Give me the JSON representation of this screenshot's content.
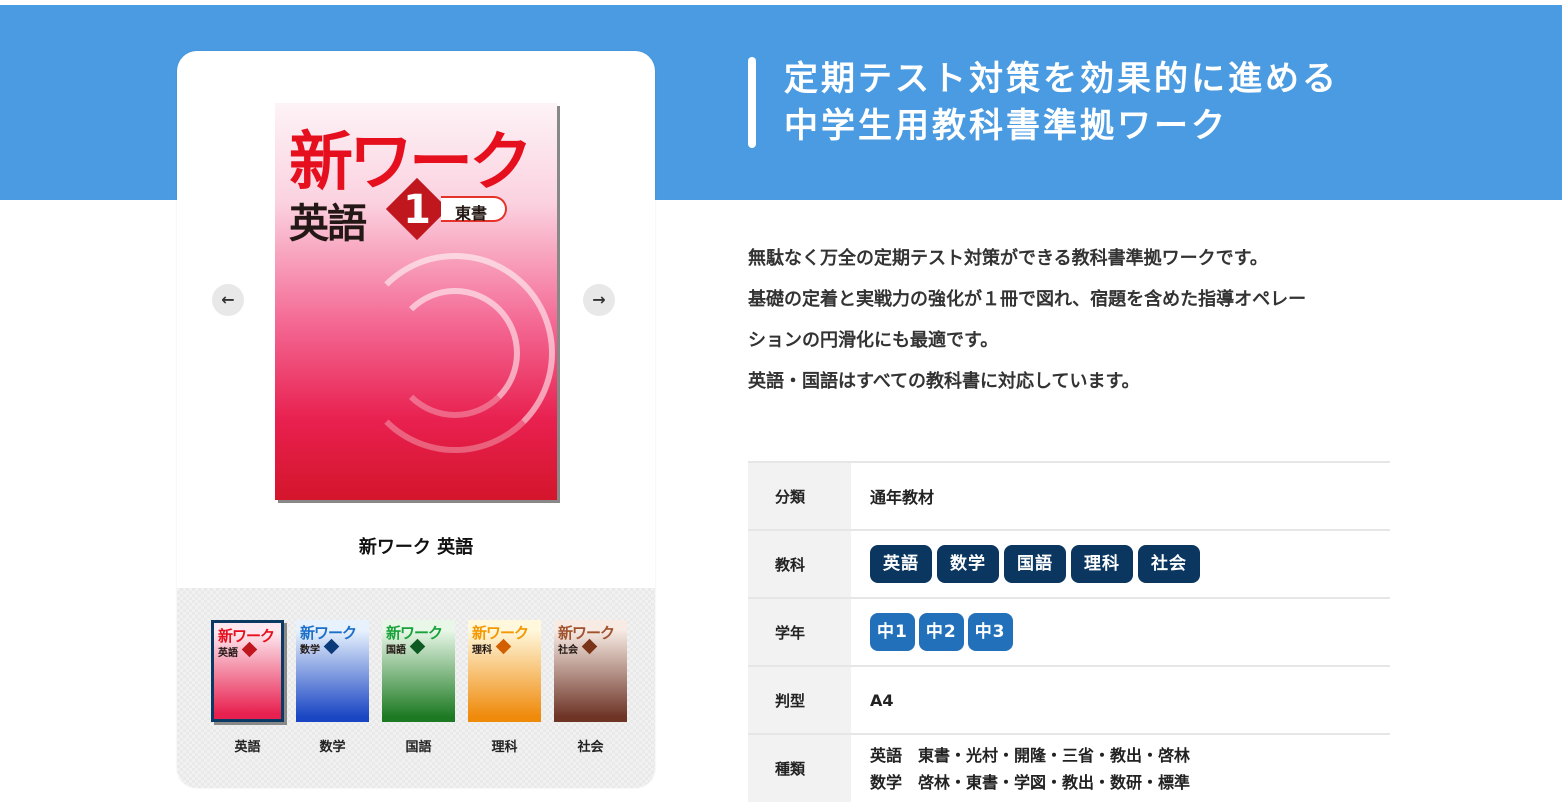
{
  "heading": {
    "line1": "定期テスト対策を効果的に進める",
    "line2": "中学生用教科書準拠ワーク"
  },
  "description": [
    "無駄なく万全の定期テスト対策ができる教科書準拠ワークです。",
    "基礎の定着と実戦力の強化が１冊で図れ、宿題を含めた指導オペレー",
    "ションの円滑化にも最適です。",
    "英語・国語はすべての教科書に対応しています。"
  ],
  "product": {
    "title": "新ワーク 英語",
    "cover": {
      "series": "新ワーク",
      "subject": "英語",
      "grade": "1",
      "publisher": "東書"
    },
    "prev_icon": "arrow-left-icon",
    "next_icon": "arrow-right-icon",
    "prev": "←",
    "next": "→"
  },
  "thumbnails": [
    {
      "label": "英語",
      "series": "新ワーク",
      "subject": "英語",
      "title_color": "#e60f1e",
      "c1": "#fde8ef",
      "c2": "#e8204f",
      "accent": "#c0171f",
      "selected": true
    },
    {
      "label": "数学",
      "series": "新ワーク",
      "subject": "数学",
      "title_color": "#1b6fc8",
      "c1": "#e8f2fd",
      "c2": "#1a46c4",
      "accent": "#0a3a7a",
      "selected": false
    },
    {
      "label": "国語",
      "series": "新ワーク",
      "subject": "国語",
      "title_color": "#17a33a",
      "c1": "#e9f7e8",
      "c2": "#1d7a22",
      "accent": "#0d5a22",
      "selected": false
    },
    {
      "label": "理科",
      "series": "新ワーク",
      "subject": "理科",
      "title_color": "#f39800",
      "c1": "#fff8dc",
      "c2": "#ef8a0b",
      "accent": "#d25f00",
      "selected": false
    },
    {
      "label": "社会",
      "series": "新ワーク",
      "subject": "社会",
      "title_color": "#a0522d",
      "c1": "#f7ebe4",
      "c2": "#6e3426",
      "accent": "#7a3417",
      "selected": false
    }
  ],
  "specs": {
    "category": {
      "label": "分類",
      "value": "通年教材"
    },
    "subjects": {
      "label": "教科",
      "tags": [
        "英語",
        "数学",
        "国語",
        "理科",
        "社会"
      ],
      "color": "#0b365f"
    },
    "grades": {
      "label": "学年",
      "tags": [
        "中1",
        "中2",
        "中3"
      ],
      "color": "#2170b9"
    },
    "size": {
      "label": "判型",
      "value": "A4"
    },
    "kinds": {
      "label": "種類",
      "lines": [
        "英語　東書・光村・開隆・三省・教出・啓林",
        "数学　啓林・東書・学図・教出・数研・標準"
      ]
    }
  },
  "colors": {
    "header_band": "#4a9be2"
  }
}
